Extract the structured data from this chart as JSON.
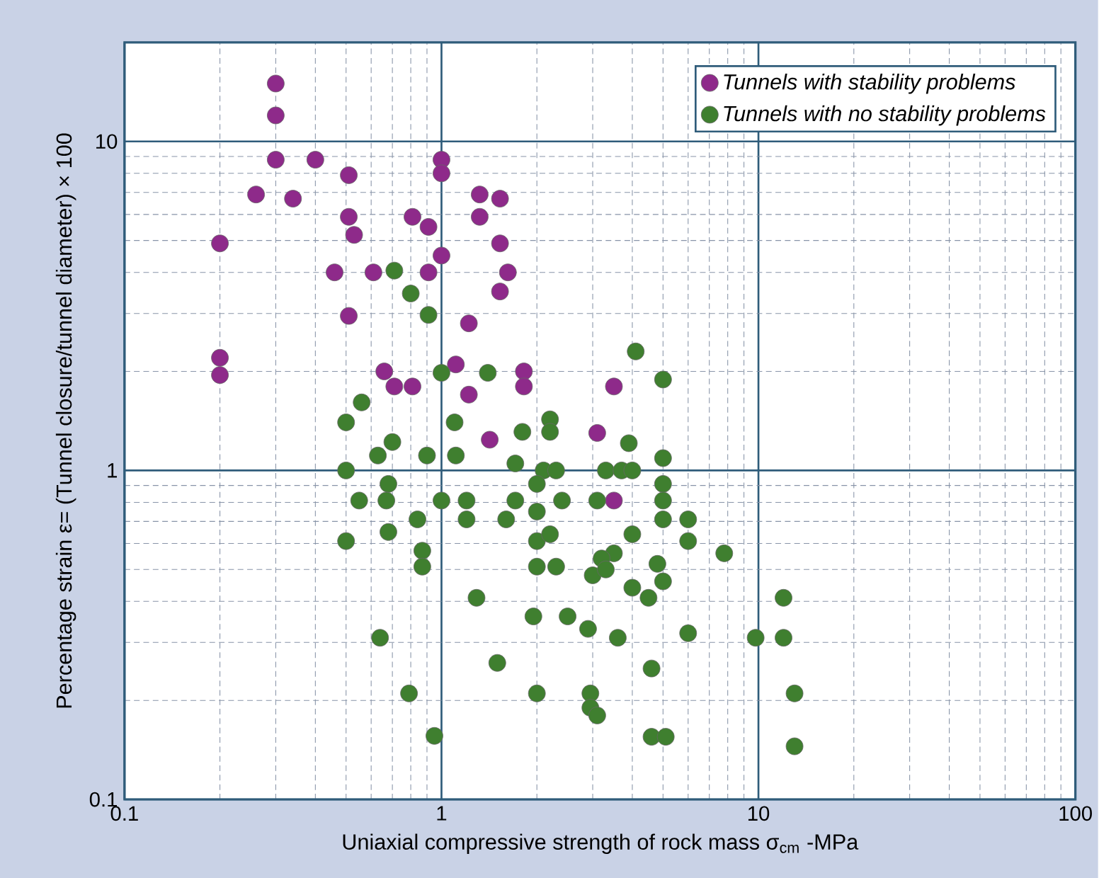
{
  "chart_data": {
    "type": "scatter",
    "xlabel": "Uniaxial compressive strength of rock mass σ$_{cm}$ -MPa",
    "ylabel": "Percentage strain ε= (Tunnel closure/tunnel diameter) × 100",
    "log": "xy",
    "xlim": [
      0.1,
      100
    ],
    "ylim": [
      0.1,
      20
    ],
    "xticks": [
      0.1,
      1,
      10,
      100
    ],
    "yticks": [
      0.1,
      1,
      10
    ],
    "grid": true,
    "legend": "top right",
    "marker": "circle",
    "series": [
      {
        "name": "Tunnels with stability problems",
        "color": "#8e2a8a",
        "x": [
          0.3,
          0.3,
          0.3,
          0.4,
          0.26,
          0.34,
          0.51,
          1.0,
          1.0,
          0.51,
          0.53,
          0.81,
          0.91,
          1.32,
          1.53,
          1.32,
          1.53,
          0.2,
          0.46,
          0.61,
          0.91,
          1.0,
          1.62,
          1.53,
          0.51,
          1.22,
          0.2,
          0.2,
          0.66,
          0.71,
          0.81,
          1.11,
          1.22,
          1.82,
          1.82,
          1.42,
          3.1,
          3.5,
          3.5
        ],
        "values": [
          15,
          12,
          8.8,
          8.8,
          6.9,
          6.7,
          7.9,
          8.8,
          8.0,
          5.9,
          5.2,
          5.9,
          5.5,
          6.9,
          6.7,
          5.9,
          4.9,
          4.9,
          4.0,
          4.0,
          4.0,
          4.5,
          4.0,
          3.5,
          2.95,
          2.8,
          2.2,
          1.95,
          2.0,
          1.8,
          1.8,
          2.1,
          1.7,
          2.0,
          1.8,
          1.24,
          1.3,
          1.8,
          0.81
        ]
      },
      {
        "name": "Tunnels with no stability problems",
        "color": "#3f7f2f",
        "x": [
          0.71,
          0.8,
          0.91,
          1.0,
          1.4,
          0.56,
          0.5,
          1.1,
          0.7,
          1.8,
          2.2,
          2.2,
          0.63,
          0.9,
          1.11,
          0.5,
          1.71,
          2.1,
          2.3,
          2.0,
          0.68,
          0.55,
          0.67,
          1.0,
          1.2,
          1.71,
          2.4,
          3.1,
          0.84,
          1.2,
          1.6,
          2.0,
          4.1,
          5.0,
          3.9,
          5.0,
          3.3,
          3.7,
          4.0,
          5.0,
          5.0,
          5.0,
          6.0,
          6.0,
          4.0,
          7.8,
          3.5,
          3.2,
          4.8,
          0.5,
          0.68,
          0.87,
          0.87,
          2.0,
          2.2,
          2.0,
          2.3,
          3.0,
          1.29,
          1.95,
          2.5,
          2.9,
          0.64,
          1.5,
          0.79,
          2.0,
          2.95,
          2.95,
          3.1,
          0.95,
          3.3,
          5.0,
          4.0,
          4.5,
          12,
          3.6,
          6.0,
          9.8,
          12,
          4.6,
          13,
          4.6,
          5.1,
          13
        ],
        "values": [
          4.05,
          3.45,
          2.97,
          1.98,
          1.98,
          1.61,
          1.4,
          1.4,
          1.22,
          1.31,
          1.43,
          1.31,
          1.11,
          1.11,
          1.11,
          1.0,
          1.05,
          1.0,
          1.0,
          0.91,
          0.91,
          0.81,
          0.81,
          0.81,
          0.81,
          0.81,
          0.81,
          0.81,
          0.71,
          0.71,
          0.71,
          0.75,
          2.3,
          1.89,
          1.21,
          1.09,
          1.0,
          1.0,
          1.0,
          0.91,
          0.81,
          0.71,
          0.71,
          0.61,
          0.64,
          0.56,
          0.56,
          0.54,
          0.52,
          0.61,
          0.65,
          0.57,
          0.51,
          0.61,
          0.64,
          0.51,
          0.51,
          0.48,
          0.41,
          0.36,
          0.36,
          0.33,
          0.31,
          0.26,
          0.21,
          0.21,
          0.21,
          0.19,
          0.18,
          0.156,
          0.5,
          0.46,
          0.44,
          0.41,
          0.41,
          0.31,
          0.32,
          0.31,
          0.31,
          0.25,
          0.21,
          0.155,
          0.155,
          0.145
        ]
      }
    ]
  }
}
